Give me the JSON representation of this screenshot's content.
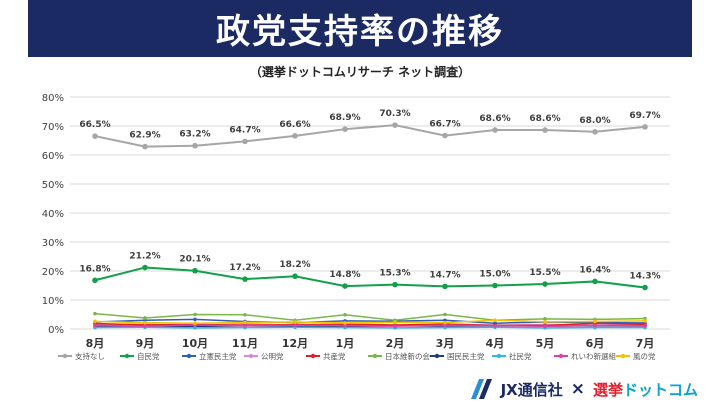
{
  "header": {
    "title": "政党支持率の推移",
    "subtitle": "（選挙ドットコムリサーチ ネット調査）"
  },
  "footer": {
    "jx_brand": "JX通信社",
    "cross": "×",
    "senkyo_brand_a": "選挙",
    "senkyo_brand_b": "ドットコム"
  },
  "chart_data": {
    "type": "line",
    "categories": [
      "8月",
      "9月",
      "10月",
      "11月",
      "12月",
      "1月",
      "2月",
      "3月",
      "4月",
      "5月",
      "6月",
      "7月"
    ],
    "yticks": [
      "0%",
      "10%",
      "20%",
      "30%",
      "40%",
      "50%",
      "60%",
      "70%",
      "80%"
    ],
    "ylim": [
      0,
      80
    ],
    "grid": true,
    "legend_position": "bottom",
    "series": [
      {
        "name": "支持なし",
        "color": "#a6a6a6",
        "values": [
          66.5,
          62.9,
          63.2,
          64.7,
          66.6,
          68.9,
          70.3,
          66.7,
          68.6,
          68.6,
          68.0,
          69.7
        ],
        "show_labels": true
      },
      {
        "name": "自民党",
        "color": "#13a04a",
        "values": [
          16.8,
          21.2,
          20.1,
          17.2,
          18.2,
          14.8,
          15.3,
          14.7,
          15.0,
          15.5,
          16.4,
          14.3
        ],
        "show_labels": true
      },
      {
        "name": "立憲民主党",
        "color": "#2e5fb8",
        "values": [
          2.4,
          3.0,
          3.3,
          2.6,
          2.2,
          2.8,
          2.7,
          3.0,
          2.0,
          2.4,
          2.2,
          2.1
        ],
        "show_labels": false
      },
      {
        "name": "公明党",
        "color": "#d68bd8",
        "values": [
          1.5,
          1.6,
          1.2,
          1.8,
          1.4,
          1.5,
          1.3,
          1.4,
          1.2,
          1.6,
          1.4,
          1.5
        ],
        "show_labels": false
      },
      {
        "name": "共産党",
        "color": "#e0202a",
        "values": [
          1.9,
          1.4,
          1.6,
          1.3,
          1.5,
          1.6,
          1.4,
          1.7,
          1.3,
          1.2,
          2.0,
          1.6
        ],
        "show_labels": false
      },
      {
        "name": "日本維新の会",
        "color": "#7ab648",
        "values": [
          5.3,
          3.8,
          5.0,
          4.9,
          3.0,
          4.9,
          3.0,
          5.0,
          3.0,
          3.5,
          3.3,
          3.6
        ],
        "show_labels": false
      },
      {
        "name": "国民民主党",
        "color": "#1f3b83",
        "values": [
          0.8,
          1.0,
          0.9,
          1.1,
          1.0,
          0.9,
          1.1,
          1.0,
          1.2,
          1.0,
          1.1,
          1.0
        ],
        "show_labels": false
      },
      {
        "name": "社民党",
        "color": "#33b5e5",
        "values": [
          0.5,
          0.6,
          0.4,
          0.5,
          0.6,
          0.5,
          0.4,
          0.5,
          0.6,
          0.4,
          0.5,
          0.5
        ],
        "show_labels": false
      },
      {
        "name": "れいわ新選組",
        "color": "#e040a0",
        "values": [
          1.2,
          1.0,
          1.4,
          1.1,
          1.3,
          1.2,
          1.0,
          1.3,
          1.1,
          1.0,
          1.2,
          1.1
        ],
        "show_labels": false
      },
      {
        "name": "風の党",
        "color": "#f5c000",
        "values": [
          2.6,
          2.2,
          2.0,
          2.3,
          2.4,
          2.1,
          2.3,
          2.2,
          3.0,
          2.5,
          2.6,
          2.8
        ],
        "show_labels": false
      }
    ]
  }
}
